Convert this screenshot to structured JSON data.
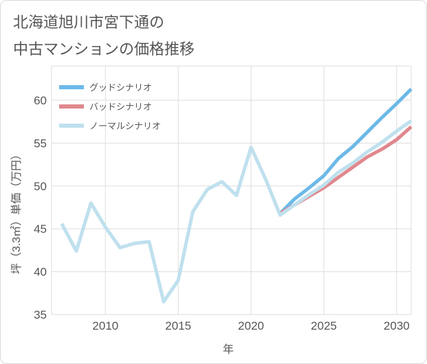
{
  "chart_data": {
    "type": "line",
    "title_lines": [
      "北海道旭川市宮下通の",
      "中古マンションの価格推移"
    ],
    "xlabel": "年",
    "ylabel": "坪（3.3㎡）単価（万円）",
    "xlim": [
      2006.3,
      2031
    ],
    "ylim": [
      35,
      64
    ],
    "x_ticks": [
      2010,
      2015,
      2020,
      2025,
      2030
    ],
    "y_ticks": [
      35,
      40,
      45,
      50,
      55,
      60
    ],
    "grid": true,
    "legend_position": "top-left",
    "series": [
      {
        "name": "グッドシナリオ",
        "color": "#6cb9e8",
        "x": [
          2022,
          2023,
          2024,
          2025,
          2026,
          2027,
          2028,
          2029,
          2030,
          2031
        ],
        "y": [
          46.8,
          48.5,
          49.8,
          51.2,
          53.2,
          54.6,
          56.3,
          58.0,
          59.6,
          61.3
        ]
      },
      {
        "name": "バッドシナリオ",
        "color": "#e0888e",
        "x": [
          2022,
          2023,
          2024,
          2025,
          2026,
          2027,
          2028,
          2029,
          2030,
          2031
        ],
        "y": [
          46.8,
          47.8,
          48.8,
          49.8,
          51.0,
          52.2,
          53.4,
          54.3,
          55.4,
          56.9
        ]
      },
      {
        "name": "ノーマルシナリオ",
        "color": "#bfe0ee",
        "x": [
          2007,
          2008,
          2009,
          2010,
          2011,
          2012,
          2013,
          2014,
          2015,
          2016,
          2017,
          2018,
          2019,
          2020,
          2021,
          2022,
          2023,
          2024,
          2025,
          2026,
          2027,
          2028,
          2029,
          2030,
          2031
        ],
        "y": [
          45.6,
          42.4,
          48.0,
          45.2,
          42.8,
          43.3,
          43.5,
          36.5,
          39.0,
          47.0,
          49.6,
          50.5,
          48.9,
          54.5,
          50.8,
          46.6,
          47.8,
          49.0,
          50.1,
          51.6,
          52.7,
          54.0,
          55.1,
          56.4,
          57.6
        ]
      }
    ]
  }
}
